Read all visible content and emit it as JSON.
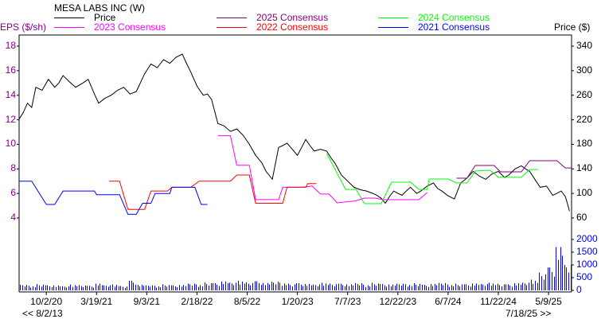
{
  "chart_data": {
    "type": "line",
    "title": "MESA LABS INC (W)",
    "ylabel_left": "EPS ($/sh)",
    "ylabel_right": "Price ($)",
    "eps_ylim": [
      4,
      18
    ],
    "eps_ticks": [
      "4",
      "6",
      "8",
      "10",
      "12",
      "14",
      "16",
      "18"
    ],
    "price_ylim": [
      60,
      340
    ],
    "price_ticks": [
      "60",
      "100",
      "140",
      "180",
      "220",
      "260",
      "300",
      "340"
    ],
    "volume_ylim": [
      0,
      2000
    ],
    "volume_ticks": [
      "0",
      "500",
      "1000",
      "1500",
      "2000"
    ],
    "x_unit": "weeks since start",
    "x_range": [
      0,
      264
    ],
    "x_ticks": [
      {
        "label": "10/2/20",
        "w": 13
      },
      {
        "label": "3/19/21",
        "w": 37
      },
      {
        "label": "9/3/21",
        "w": 61
      },
      {
        "label": "2/18/22",
        "w": 85
      },
      {
        "label": "8/5/22",
        "w": 109
      },
      {
        "label": "1/20/23",
        "w": 133
      },
      {
        "label": "7/7/23",
        "w": 157
      },
      {
        "label": "12/22/23",
        "w": 181
      },
      {
        "label": "6/7/24",
        "w": 205
      },
      {
        "label": "11/22/24",
        "w": 229
      },
      {
        "label": "5/9/25",
        "w": 253
      }
    ],
    "range_start": "<< 8/2/13",
    "range_end": "7/18/25 >>",
    "series": [
      {
        "name": "Price",
        "color": "#000000",
        "axis": "price",
        "legend": "Price",
        "points": [
          [
            0,
            221
          ],
          [
            2,
            232
          ],
          [
            4,
            247
          ],
          [
            6,
            240
          ],
          [
            8,
            273
          ],
          [
            11,
            268
          ],
          [
            14,
            286
          ],
          [
            17,
            273
          ],
          [
            19,
            280
          ],
          [
            21,
            292
          ],
          [
            24,
            282
          ],
          [
            27,
            273
          ],
          [
            30,
            279
          ],
          [
            33,
            286
          ],
          [
            36,
            262
          ],
          [
            38,
            247
          ],
          [
            41,
            255
          ],
          [
            44,
            260
          ],
          [
            47,
            268
          ],
          [
            50,
            273
          ],
          [
            53,
            262
          ],
          [
            56,
            266
          ],
          [
            60,
            295
          ],
          [
            63,
            311
          ],
          [
            66,
            305
          ],
          [
            69,
            318
          ],
          [
            72,
            312
          ],
          [
            75,
            322
          ],
          [
            78,
            327
          ],
          [
            80,
            312
          ],
          [
            82,
            298
          ],
          [
            85,
            275
          ],
          [
            88,
            260
          ],
          [
            90,
            262
          ],
          [
            92,
            253
          ],
          [
            95,
            214
          ],
          [
            98,
            210
          ],
          [
            101,
            201
          ],
          [
            104,
            205
          ],
          [
            107,
            195
          ],
          [
            110,
            180
          ],
          [
            113,
            162
          ],
          [
            116,
            150
          ],
          [
            118,
            136
          ],
          [
            121,
            123
          ],
          [
            124,
            175
          ],
          [
            126,
            178
          ],
          [
            128,
            182
          ],
          [
            131,
            170
          ],
          [
            133,
            162
          ],
          [
            135,
            175
          ],
          [
            137,
            188
          ],
          [
            139,
            178
          ],
          [
            141,
            169
          ],
          [
            144,
            172
          ],
          [
            147,
            169
          ],
          [
            149,
            158
          ],
          [
            151,
            149
          ],
          [
            154,
            130
          ],
          [
            157,
            120
          ],
          [
            160,
            110
          ],
          [
            163,
            106
          ],
          [
            166,
            104
          ],
          [
            169,
            100
          ],
          [
            171,
            97
          ],
          [
            173,
            92
          ],
          [
            175,
            84
          ],
          [
            177,
            95
          ],
          [
            179,
            104
          ],
          [
            181,
            100
          ],
          [
            183,
            97
          ],
          [
            185,
            104
          ],
          [
            187,
            110
          ],
          [
            190,
            100
          ],
          [
            192,
            104
          ],
          [
            195,
            112
          ],
          [
            198,
            117
          ],
          [
            200,
            108
          ],
          [
            202,
            104
          ],
          [
            205,
            96
          ],
          [
            208,
            91
          ],
          [
            211,
            117
          ],
          [
            214,
            125
          ],
          [
            217,
            136
          ],
          [
            220,
            128
          ],
          [
            223,
            123
          ],
          [
            226,
            132
          ],
          [
            229,
            136
          ],
          [
            232,
            126
          ],
          [
            234,
            130
          ],
          [
            237,
            140
          ],
          [
            240,
            145
          ],
          [
            242,
            140
          ],
          [
            244,
            136
          ],
          [
            247,
            120
          ],
          [
            249,
            110
          ],
          [
            252,
            112
          ],
          [
            255,
            97
          ],
          [
            257,
            100
          ],
          [
            259,
            104
          ],
          [
            261,
            95
          ],
          [
            262,
            84
          ],
          [
            263,
            71
          ]
        ]
      },
      {
        "name": "2025 Consensus",
        "color": "#800080",
        "axis": "eps",
        "legend": "2025 Consensus",
        "points": [
          [
            209,
            7.24
          ],
          [
            214,
            7.24
          ],
          [
            218,
            8.28
          ],
          [
            227,
            8.28
          ],
          [
            230,
            7.76
          ],
          [
            240,
            7.76
          ],
          [
            244,
            8.67
          ],
          [
            257,
            8.67
          ],
          [
            261,
            8.08
          ],
          [
            264,
            8.08
          ]
        ]
      },
      {
        "name": "2024 Consensus",
        "color": "#00ff00",
        "axis": "eps",
        "legend": "2024 Consensus",
        "points": [
          [
            147,
            9.25
          ],
          [
            156,
            6.33
          ],
          [
            161,
            6.33
          ],
          [
            165,
            5.17
          ],
          [
            173,
            5.17
          ],
          [
            178,
            6.92
          ],
          [
            187,
            6.92
          ],
          [
            191,
            6.33
          ],
          [
            195,
            6.33
          ],
          [
            196,
            7.18
          ],
          [
            205,
            7.18
          ],
          [
            209,
            6.85
          ],
          [
            214,
            6.85
          ],
          [
            218,
            7.83
          ],
          [
            225,
            7.89
          ],
          [
            229,
            7.31
          ],
          [
            240,
            7.31
          ],
          [
            244,
            7.95
          ],
          [
            248,
            7.95
          ]
        ]
      },
      {
        "name": "2023 Consensus",
        "color": "#ff00ff",
        "axis": "eps",
        "legend": "2023 Consensus",
        "points": [
          [
            95,
            10.7
          ],
          [
            101,
            10.7
          ],
          [
            104,
            8.3
          ],
          [
            110,
            8.3
          ],
          [
            113,
            5.5
          ],
          [
            124,
            5.5
          ],
          [
            126,
            6.5
          ],
          [
            135,
            6.5
          ],
          [
            140,
            6.6
          ],
          [
            144,
            5.95
          ],
          [
            148,
            5.95
          ],
          [
            152,
            5.23
          ],
          [
            161,
            5.4
          ],
          [
            165,
            5.62
          ],
          [
            170,
            5.62
          ],
          [
            174,
            5.49
          ],
          [
            191,
            5.49
          ],
          [
            195,
            6.07
          ]
        ]
      },
      {
        "name": "2022 Consensus",
        "color": "#ff0000",
        "axis": "eps",
        "legend": "2022 Consensus",
        "points": [
          [
            43,
            7.0
          ],
          [
            48,
            7.0
          ],
          [
            52,
            4.7
          ],
          [
            60,
            4.7
          ],
          [
            63,
            6.2
          ],
          [
            71,
            6.2
          ],
          [
            73,
            6.5
          ],
          [
            82,
            6.5
          ],
          [
            86,
            7.0
          ],
          [
            101,
            7.0
          ],
          [
            104,
            7.5
          ],
          [
            110,
            7.5
          ],
          [
            113,
            5.2
          ],
          [
            126,
            5.2
          ],
          [
            128,
            6.5
          ],
          [
            137,
            6.5
          ],
          [
            138,
            6.8
          ],
          [
            142,
            6.8
          ]
        ]
      },
      {
        "name": "2021 Consensus",
        "color": "#0000ff",
        "axis": "eps",
        "legend": "2021 Consensus",
        "points": [
          [
            0,
            7.0
          ],
          [
            6,
            7.0
          ],
          [
            13,
            5.1
          ],
          [
            17,
            5.1
          ],
          [
            21,
            6.2
          ],
          [
            36,
            6.2
          ],
          [
            37,
            5.9
          ],
          [
            48,
            5.9
          ],
          [
            52,
            4.3
          ],
          [
            56,
            4.3
          ],
          [
            59,
            5.2
          ],
          [
            63,
            5.2
          ],
          [
            65,
            6.0
          ],
          [
            72,
            6.0
          ],
          [
            73,
            6.5
          ],
          [
            84,
            6.5
          ],
          [
            87,
            5.1
          ],
          [
            90,
            5.1
          ]
        ]
      }
    ],
    "volume": {
      "color": "#0000ff",
      "step_weeks": 4,
      "values": [
        220,
        180,
        250,
        200,
        190,
        160,
        230,
        210,
        180,
        260,
        200,
        240,
        170,
        380,
        220,
        200,
        180,
        240,
        200,
        210,
        260,
        230,
        310,
        280,
        350,
        300,
        380,
        320,
        360,
        290,
        340,
        300,
        260,
        280,
        250,
        230,
        300,
        270,
        260,
        240,
        280,
        220,
        300,
        250,
        230,
        260,
        240,
        280,
        220,
        250,
        290,
        230,
        260,
        240,
        270,
        250,
        300,
        260,
        240,
        280,
        300,
        420,
        700,
        900,
        1700,
        1000
      ]
    }
  }
}
